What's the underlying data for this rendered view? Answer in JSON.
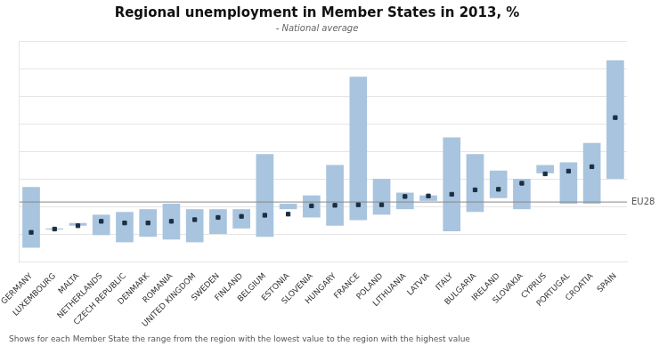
{
  "chart_data": {
    "type": "bar",
    "title": "Regional unemployment in Member States in 2013, %",
    "subtitle": "- National average",
    "footnote": "Shows for each Member State the range from the region with the lowest value to the region with the highest value",
    "categories": [
      "GERMANY",
      "LUXEMBOURG",
      "MALTA",
      "NETHERLANDS",
      "CZECH REPUBLIC",
      "DENMARK",
      "ROMANIA",
      "UNITED KINGDOM",
      "SWEDEN",
      "FINLAND",
      "BELGIUM",
      "ESTONIA",
      "SLOVENIA",
      "HUNGARY",
      "FRANCE",
      "POLAND",
      "LITHUANIA",
      "LATVIA",
      "ITALY",
      "BULGARIA",
      "IRELAND",
      "SLOVAKIA",
      "CYPRUS",
      "PORTUGAL",
      "CROATIA",
      "SPAIN"
    ],
    "series": [
      {
        "type": "bar",
        "color": "#a8c4df",
        "values": [
          [
            2.5,
            13.5
          ],
          [
            5.8,
            6.0
          ],
          [
            6.5,
            7.0
          ],
          [
            4.8,
            8.5
          ],
          [
            3.5,
            9.0
          ],
          [
            4.5,
            9.5
          ],
          [
            4.0,
            10.5
          ],
          [
            3.5,
            9.5
          ],
          [
            5.0,
            9.5
          ],
          [
            6.0,
            9.5
          ],
          [
            4.5,
            19.5
          ],
          [
            9.5,
            10.5
          ],
          [
            8.0,
            12.0
          ],
          [
            6.5,
            17.5
          ],
          [
            7.5,
            33.5
          ],
          [
            8.5,
            15.0
          ],
          [
            9.5,
            12.5
          ],
          [
            11.0,
            12.0
          ],
          [
            5.5,
            22.5
          ],
          [
            9.0,
            19.5
          ],
          [
            11.5,
            16.5
          ],
          [
            9.5,
            15.0
          ],
          [
            16.0,
            17.5
          ],
          [
            10.5,
            18.0
          ],
          [
            10.5,
            21.5
          ],
          [
            15.0,
            36.5
          ]
        ]
      },
      {
        "type": "line",
        "color": "#1a2f42",
        "marker": "square",
        "line_style": "none",
        "values": [
          5.3,
          5.9,
          6.5,
          7.3,
          7.0,
          7.0,
          7.3,
          7.6,
          8.0,
          8.2,
          8.4,
          8.6,
          10.1,
          10.2,
          10.3,
          10.3,
          11.8,
          11.9,
          12.2,
          13.0,
          13.1,
          14.2,
          15.9,
          16.4,
          17.2,
          26.1
        ]
      }
    ],
    "annotations": [
      {
        "type": "hline",
        "y": 10.8,
        "text": "EU28",
        "color": "#888888"
      }
    ],
    "ylim": [
      0,
      40
    ],
    "yticks": [
      5,
      10,
      15,
      20,
      25,
      30,
      35,
      40
    ],
    "grid": true,
    "tick_labels": "x"
  }
}
